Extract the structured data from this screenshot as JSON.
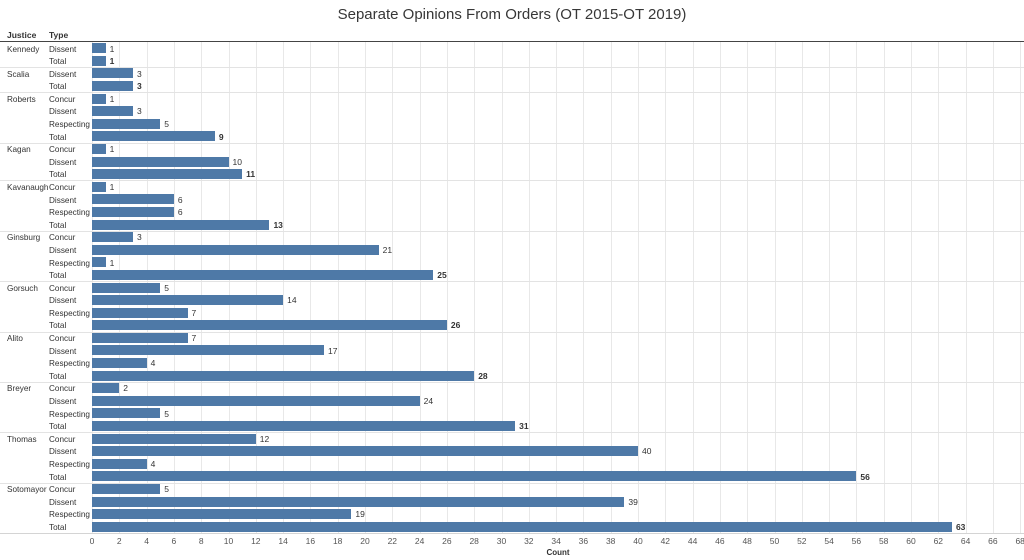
{
  "title": "Separate Opinions From Orders (OT 2015-OT 2019)",
  "columns": {
    "justice": "Justice",
    "type": "Type"
  },
  "axis": {
    "label": "Count",
    "tick_min": 0,
    "tick_max": 68,
    "tick_step": 2
  },
  "colors": {
    "bar": "#4e79a7",
    "grid": "#e8e8e8",
    "group_separator": "#e3e3e3",
    "header_line": "#444444",
    "axis_line": "#d4d4d4",
    "title_text": "#373737",
    "label_text": "#333333",
    "tick_text": "#555555"
  },
  "chart_data": {
    "type": "bar",
    "orientation": "horizontal",
    "title": "Separate Opinions From Orders (OT 2015-OT 2019)",
    "xlabel": "Count",
    "ylabel": "",
    "xlim": [
      0,
      68.2
    ],
    "grid": true,
    "groups": [
      {
        "justice": "Kennedy",
        "rows": [
          {
            "type": "Dissent",
            "value": 1
          },
          {
            "type": "Total",
            "value": 1
          }
        ]
      },
      {
        "justice": "Scalia",
        "rows": [
          {
            "type": "Dissent",
            "value": 3
          },
          {
            "type": "Total",
            "value": 3
          }
        ]
      },
      {
        "justice": "Roberts",
        "rows": [
          {
            "type": "Concur",
            "value": 1
          },
          {
            "type": "Dissent",
            "value": 3
          },
          {
            "type": "Respecting",
            "value": 5
          },
          {
            "type": "Total",
            "value": 9
          }
        ]
      },
      {
        "justice": "Kagan",
        "rows": [
          {
            "type": "Concur",
            "value": 1
          },
          {
            "type": "Dissent",
            "value": 10
          },
          {
            "type": "Total",
            "value": 11
          }
        ]
      },
      {
        "justice": "Kavanaugh",
        "rows": [
          {
            "type": "Concur",
            "value": 1
          },
          {
            "type": "Dissent",
            "value": 6
          },
          {
            "type": "Respecting",
            "value": 6
          },
          {
            "type": "Total",
            "value": 13
          }
        ]
      },
      {
        "justice": "Ginsburg",
        "rows": [
          {
            "type": "Concur",
            "value": 3
          },
          {
            "type": "Dissent",
            "value": 21
          },
          {
            "type": "Respecting",
            "value": 1
          },
          {
            "type": "Total",
            "value": 25
          }
        ]
      },
      {
        "justice": "Gorsuch",
        "rows": [
          {
            "type": "Concur",
            "value": 5
          },
          {
            "type": "Dissent",
            "value": 14
          },
          {
            "type": "Respecting",
            "value": 7
          },
          {
            "type": "Total",
            "value": 26
          }
        ]
      },
      {
        "justice": "Alito",
        "rows": [
          {
            "type": "Concur",
            "value": 7
          },
          {
            "type": "Dissent",
            "value": 17
          },
          {
            "type": "Respecting",
            "value": 4
          },
          {
            "type": "Total",
            "value": 28
          }
        ]
      },
      {
        "justice": "Breyer",
        "rows": [
          {
            "type": "Concur",
            "value": 2
          },
          {
            "type": "Dissent",
            "value": 24
          },
          {
            "type": "Respecting",
            "value": 5
          },
          {
            "type": "Total",
            "value": 31
          }
        ]
      },
      {
        "justice": "Thomas",
        "rows": [
          {
            "type": "Concur",
            "value": 12
          },
          {
            "type": "Dissent",
            "value": 40
          },
          {
            "type": "Respecting",
            "value": 4
          },
          {
            "type": "Total",
            "value": 56
          }
        ]
      },
      {
        "justice": "Sotomayor",
        "rows": [
          {
            "type": "Concur",
            "value": 5
          },
          {
            "type": "Dissent",
            "value": 39
          },
          {
            "type": "Respecting",
            "value": 19
          },
          {
            "type": "Total",
            "value": 63
          }
        ]
      }
    ]
  }
}
